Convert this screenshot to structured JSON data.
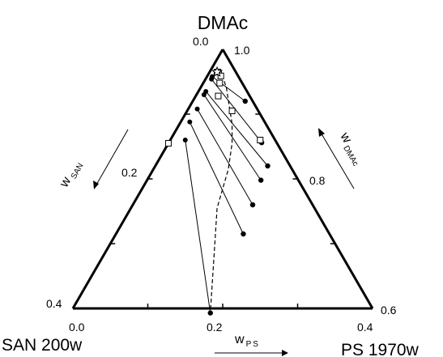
{
  "chart_data": {
    "type": "scatter",
    "subtype": "ternary",
    "vertex_labels": {
      "top": "DMAc",
      "left": "SAN 200w",
      "right": "PS 1970w"
    },
    "axis_labels": {
      "left": {
        "main": "w",
        "sub": "SAN"
      },
      "right": {
        "main": "w",
        "sub": "DMAc"
      },
      "bottom": {
        "main": "w",
        "sub": "PS"
      }
    },
    "tick_labels": {
      "left": [
        "0.0",
        "0.2",
        "0.4"
      ],
      "right": [
        "1.0",
        "0.8",
        "0.6"
      ],
      "bottom": [
        "0.0",
        "0.2",
        "0.4"
      ]
    },
    "ranges": {
      "w_SAN": [
        0,
        0.4
      ],
      "w_PS": [
        0,
        0.4
      ],
      "w_DMAc": [
        0.6,
        1.0
      ]
    },
    "tie_lines": [
      {
        "sp": {
          "w_SAN": 0.035,
          "w_PS": 0.007
        },
        "pp": {
          "w_SAN": 0.01,
          "w_PS": 0.07
        }
      },
      {
        "sp": {
          "w_SAN": 0.038,
          "w_PS": 0.008
        },
        "pp": {
          "w_SAN": 0.02,
          "w_PS": 0.124
        }
      },
      {
        "sp": {
          "w_SAN": 0.055,
          "w_PS": 0.01
        },
        "pp": {
          "w_SAN": 0.03,
          "w_PS": 0.15
        }
      },
      {
        "sp": {
          "w_SAN": 0.06,
          "w_PS": 0.01
        },
        "pp": {
          "w_SAN": 0.05,
          "w_PS": 0.152
        }
      },
      {
        "sp": {
          "w_SAN": 0.08,
          "w_PS": 0.012
        },
        "pp": {
          "w_SAN": 0.08,
          "w_PS": 0.16
        }
      },
      {
        "sp": {
          "w_SAN": 0.1,
          "w_PS": 0.012
        },
        "pp": {
          "w_SAN": 0.115,
          "w_PS": 0.17
        }
      },
      {
        "sp": {
          "w_SAN": 0.12,
          "w_PS": 0.02
        },
        "pp": {
          "w_SAN": 0.22,
          "w_PS": 0.187
        }
      }
    ],
    "binodal": [
      {
        "w_SAN": 0.018,
        "w_PS": 0.012
      },
      {
        "w_SAN": 0.025,
        "w_PS": 0.035
      },
      {
        "w_SAN": 0.045,
        "w_PS": 0.07
      },
      {
        "w_SAN": 0.06,
        "w_PS": 0.085
      },
      {
        "w_SAN": 0.085,
        "w_PS": 0.1
      },
      {
        "w_SAN": 0.13,
        "w_PS": 0.115
      },
      {
        "w_SAN": 0.22,
        "w_PS": 0.187
      }
    ],
    "critical_point_star": {
      "w_SAN": 0.025,
      "w_PS": 0.01
    },
    "cloud_points_squares": [
      {
        "w_SAN": 0.025,
        "w_PS": 0.01
      },
      {
        "w_SAN": 0.023,
        "w_PS": 0.018
      },
      {
        "w_SAN": 0.03,
        "w_PS": 0.022
      },
      {
        "w_SAN": 0.042,
        "w_PS": 0.03
      },
      {
        "w_SAN": 0.035,
        "w_PS": 0.06
      },
      {
        "w_SAN": 0.02,
        "w_PS": 0.12
      },
      {
        "w_SAN": 0.145,
        "w_PS": 0.0
      }
    ]
  }
}
